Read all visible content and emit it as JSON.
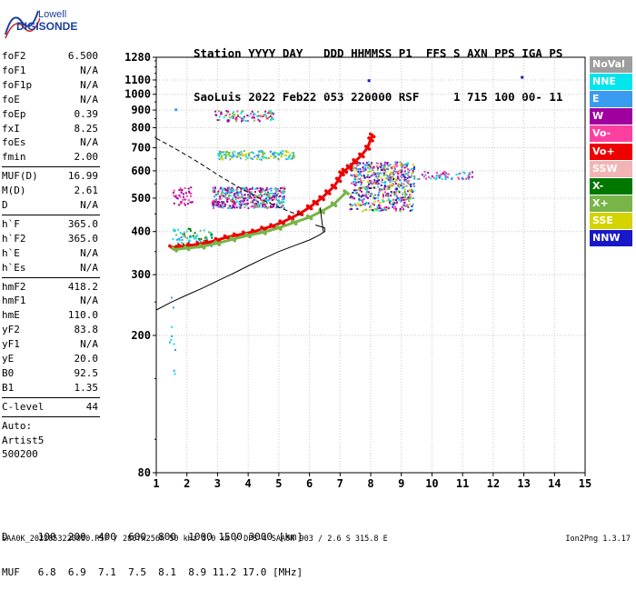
{
  "logo": {
    "line1": "Lowell",
    "line2": "DIGISONDE"
  },
  "header": {
    "line1": "Station YYYY DAY   DDD HHMMSS P1  FFS S AXN PPS IGA PS",
    "line2": "SaoLuis 2022 Feb22 053 220000 RSF     1 715 100 00- 11"
  },
  "params": {
    "group1": [
      {
        "label": "foF2",
        "value": "6.500"
      },
      {
        "label": "foF1",
        "value": "N/A"
      },
      {
        "label": "foF1p",
        "value": "N/A"
      },
      {
        "label": "foE",
        "value": "N/A"
      },
      {
        "label": "foEp",
        "value": "0.39"
      },
      {
        "label": "fxI",
        "value": "8.25"
      },
      {
        "label": "foEs",
        "value": "N/A"
      },
      {
        "label": "fmin",
        "value": "2.00"
      }
    ],
    "group2": [
      {
        "label": "MUF(D)",
        "value": "16.99"
      },
      {
        "label": "M(D)",
        "value": "2.61"
      },
      {
        "label": "D",
        "value": "N/A"
      }
    ],
    "group3": [
      {
        "label": "h`F",
        "value": "365.0"
      },
      {
        "label": "h`F2",
        "value": "365.0"
      },
      {
        "label": "h`E",
        "value": "N/A"
      },
      {
        "label": "h`Es",
        "value": "N/A"
      }
    ],
    "group4": [
      {
        "label": "hmF2",
        "value": "418.2"
      },
      {
        "label": "hmF1",
        "value": "N/A"
      },
      {
        "label": "hmE",
        "value": "110.0"
      },
      {
        "label": "yF2",
        "value": "83.8"
      },
      {
        "label": "yF1",
        "value": "N/A"
      },
      {
        "label": "yE",
        "value": "20.0"
      },
      {
        "label": "B0",
        "value": "92.5"
      },
      {
        "label": "B1",
        "value": "1.35"
      }
    ],
    "clevel": {
      "label": "C-level",
      "value": "44"
    },
    "auto": [
      "Auto:",
      "Artist5",
      "500200"
    ]
  },
  "legend": [
    {
      "label": "NoVal",
      "color": "#9e9e9e"
    },
    {
      "label": "NNE",
      "color": "#00e5ee"
    },
    {
      "label": "E",
      "color": "#3a9cf0"
    },
    {
      "label": "W",
      "color": "#a000a0"
    },
    {
      "label": "Vo-",
      "color": "#ff3fa0"
    },
    {
      "label": "Vo+",
      "color": "#ee0000"
    },
    {
      "label": "SSW",
      "color": "#f4b4b4"
    },
    {
      "label": "X-",
      "color": "#007800"
    },
    {
      "label": "X+",
      "color": "#78b448"
    },
    {
      "label": "SSE",
      "color": "#d4d400"
    },
    {
      "label": "NNW",
      "color": "#1818c8"
    }
  ],
  "chart_data": {
    "type": "scatter",
    "xlim": [
      1,
      15
    ],
    "ylim": [
      80,
      1280
    ],
    "x_ticks": [
      "1",
      "2",
      "3",
      "4",
      "5",
      "6",
      "7",
      "8",
      "9",
      "10",
      "11",
      "12",
      "13",
      "14",
      "15"
    ],
    "y_ticks": [
      "80",
      "200",
      "300",
      "400",
      "500",
      "600",
      "700",
      "800",
      "900",
      "1000",
      "1100",
      "1280"
    ],
    "grid": true,
    "series": [
      {
        "name": "Vo+",
        "color": "#ee0000",
        "points": [
          [
            1.5,
            360
          ],
          [
            1.8,
            362
          ],
          [
            2.1,
            365
          ],
          [
            2.4,
            368
          ],
          [
            2.7,
            372
          ],
          [
            3.0,
            378
          ],
          [
            3.3,
            385
          ],
          [
            3.6,
            390
          ],
          [
            3.9,
            395
          ],
          [
            4.2,
            400
          ],
          [
            4.5,
            408
          ],
          [
            4.8,
            415
          ],
          [
            5.1,
            425
          ],
          [
            5.4,
            438
          ],
          [
            5.7,
            452
          ],
          [
            6.0,
            470
          ],
          [
            6.2,
            485
          ],
          [
            6.4,
            500
          ],
          [
            6.6,
            520
          ],
          [
            6.8,
            540
          ],
          [
            6.95,
            565
          ],
          [
            7.05,
            590
          ],
          [
            7.15,
            600
          ],
          [
            7.3,
            615
          ],
          [
            7.5,
            640
          ],
          [
            7.7,
            665
          ],
          [
            7.9,
            700
          ],
          [
            8.0,
            740
          ],
          [
            8.05,
            760
          ]
        ]
      },
      {
        "name": "X+",
        "color": "#78b448",
        "points": [
          [
            1.6,
            355
          ],
          [
            2.0,
            358
          ],
          [
            2.5,
            362
          ],
          [
            3.0,
            370
          ],
          [
            3.5,
            380
          ],
          [
            4.0,
            390
          ],
          [
            4.5,
            398
          ],
          [
            5.0,
            410
          ],
          [
            5.5,
            425
          ],
          [
            6.0,
            440
          ],
          [
            6.4,
            458
          ],
          [
            6.8,
            480
          ],
          [
            7.2,
            520
          ]
        ]
      }
    ],
    "virtual_height_profile": [
      [
        1.0,
        237
      ],
      [
        1.5,
        250
      ],
      [
        2.0,
        262
      ],
      [
        2.5,
        274
      ],
      [
        3.0,
        288
      ],
      [
        3.5,
        302
      ],
      [
        4.0,
        318
      ],
      [
        4.5,
        334
      ],
      [
        5.0,
        350
      ],
      [
        5.5,
        364
      ],
      [
        6.0,
        378
      ],
      [
        6.3,
        390
      ],
      [
        6.5,
        400
      ],
      [
        6.5,
        410
      ],
      [
        6.2,
        418
      ]
    ],
    "true_height_profile": [
      [
        1.0,
        745
      ],
      [
        1.5,
        705
      ],
      [
        2.0,
        665
      ],
      [
        2.5,
        625
      ],
      [
        3.0,
        585
      ],
      [
        3.5,
        550
      ],
      [
        4.0,
        520
      ],
      [
        4.5,
        492
      ],
      [
        5.0,
        470
      ],
      [
        5.5,
        452
      ],
      [
        5.8,
        445
      ]
    ]
  },
  "bottom": {
    "d_row": "D     100  200  400  600  800  1000 1500 3000 [km]",
    "muf_row": "MUF   6.8  6.9  7.1  7.5  8.1  8.9 11.2 17.0 [MHz]"
  },
  "footer": {
    "info": "SAA0K_2022053220000.RSF / 280fx256h 50 kHz 5.0 km / DPS-4 SAA0K 903 / 2.6 S 315.8 E",
    "version": "Ion2Png 1.3.17"
  }
}
